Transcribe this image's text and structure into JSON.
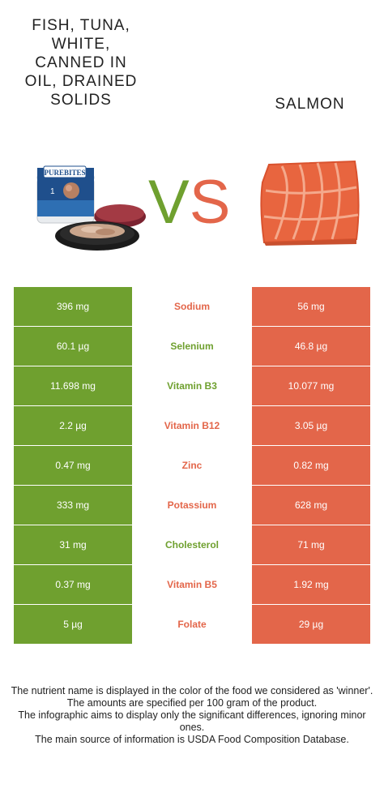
{
  "left_food": {
    "name": "FISH, TUNA, WHITE, CANNED IN OIL, DRAINED SOLIDS",
    "name_lines": "FISH, TUNA,\nWHITE,\nCANNED IN\nOIL, DRAINED\nSOLIDS",
    "color": "#6fa02f",
    "package_brand": "PUREBITES",
    "package_number": "1"
  },
  "right_food": {
    "name": "SALMON",
    "color": "#e3664a"
  },
  "vs": {
    "v": "V",
    "s": "S"
  },
  "rows": [
    {
      "nutrient": "Sodium",
      "left": "396 mg",
      "right": "56 mg",
      "winner": "right"
    },
    {
      "nutrient": "Selenium",
      "left": "60.1 µg",
      "right": "46.8 µg",
      "winner": "left"
    },
    {
      "nutrient": "Vitamin B3",
      "left": "11.698 mg",
      "right": "10.077 mg",
      "winner": "left"
    },
    {
      "nutrient": "Vitamin B12",
      "left": "2.2 µg",
      "right": "3.05 µg",
      "winner": "right"
    },
    {
      "nutrient": "Zinc",
      "left": "0.47 mg",
      "right": "0.82 mg",
      "winner": "right"
    },
    {
      "nutrient": "Potassium",
      "left": "333 mg",
      "right": "628 mg",
      "winner": "right"
    },
    {
      "nutrient": "Cholesterol",
      "left": "31 mg",
      "right": "71 mg",
      "winner": "left"
    },
    {
      "nutrient": "Vitamin B5",
      "left": "0.37 mg",
      "right": "1.92 mg",
      "winner": "right"
    },
    {
      "nutrient": "Folate",
      "left": "5 µg",
      "right": "29 µg",
      "winner": "right"
    }
  ],
  "footer": {
    "line1": "The nutrient name is displayed in the color of the food we considered as 'winner'.",
    "line2": "The amounts are specified per 100 gram of the product.",
    "line3": "The infographic aims to display only the significant differences, ignoring minor ones.",
    "line4": "The main source of information is USDA Food Composition Database."
  }
}
